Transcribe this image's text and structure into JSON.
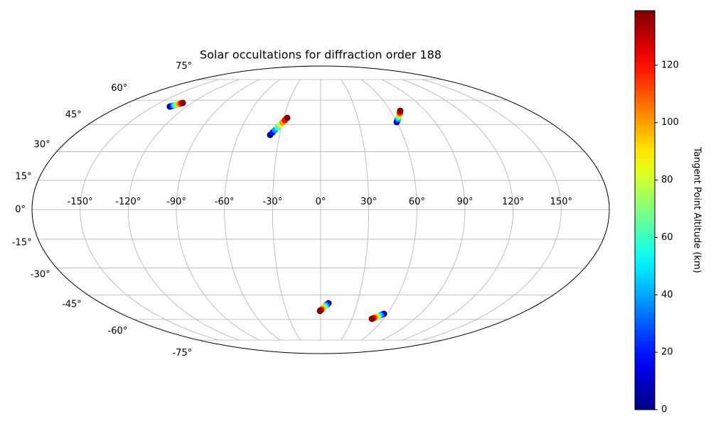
{
  "chart_data": {
    "type": "scatter",
    "projection": "mollweide",
    "title": "Solar occultations for diffraction order 188",
    "colorbar_label": "Tangent Point Altitude (km)",
    "colormap": "jet",
    "grid": true,
    "xlim": [
      -180,
      180
    ],
    "ylim": [
      -90,
      90
    ],
    "xticks": [
      {
        "value": -150,
        "label": "-150°"
      },
      {
        "value": -120,
        "label": "-120°"
      },
      {
        "value": -90,
        "label": "-90°"
      },
      {
        "value": -60,
        "label": "-60°"
      },
      {
        "value": -30,
        "label": "-30°"
      },
      {
        "value": 0,
        "label": "0°"
      },
      {
        "value": 30,
        "label": "30°"
      },
      {
        "value": 60,
        "label": "60°"
      },
      {
        "value": 90,
        "label": "90°"
      },
      {
        "value": 120,
        "label": "120°"
      },
      {
        "value": 150,
        "label": "150°"
      }
    ],
    "yticks": [
      {
        "value": -75,
        "label": "-75°"
      },
      {
        "value": -60,
        "label": "-60°"
      },
      {
        "value": -45,
        "label": "-45°"
      },
      {
        "value": -30,
        "label": "-30°"
      },
      {
        "value": -15,
        "label": "-15°"
      },
      {
        "value": 0,
        "label": "0°"
      },
      {
        "value": 15,
        "label": "15°"
      },
      {
        "value": 30,
        "label": "30°"
      },
      {
        "value": 45,
        "label": "45°"
      },
      {
        "value": 60,
        "label": "60°"
      },
      {
        "value": 75,
        "label": "75°"
      }
    ],
    "clim": [
      0,
      139
    ],
    "cticks": [
      0,
      20,
      40,
      60,
      80,
      100,
      120
    ],
    "lon": [
      -135.1,
      -134.2,
      -133.2,
      -132.3,
      -131.3,
      -130.4,
      -129.4,
      -128.5,
      -36.9,
      -35.5,
      -34.1,
      -32.7,
      -31.3,
      -29.9,
      -28.5,
      -27.1,
      59.9,
      61.1,
      62.4,
      63.6,
      64.8,
      66.0,
      67.3,
      68.5,
      6.4,
      5.4,
      4.4,
      3.4,
      2.4,
      1.4,
      0.4,
      -0.6,
      57.1,
      55.9,
      54.8,
      53.6,
      52.5,
      51.3,
      50.2,
      49.0
    ],
    "lat": [
      55.9,
      56.2,
      56.6,
      56.9,
      57.2,
      57.5,
      57.9,
      58.2,
      39.2,
      40.6,
      42.0,
      43.4,
      44.8,
      46.2,
      47.6,
      49.0,
      46.5,
      47.5,
      48.4,
      49.4,
      50.4,
      51.4,
      52.3,
      53.3,
      -49.9,
      -50.6,
      -51.2,
      -51.9,
      -52.6,
      -53.3,
      -53.9,
      -54.6,
      -56.4,
      -56.9,
      -57.3,
      -57.8,
      -58.2,
      -58.7,
      -59.1,
      -59.6
    ],
    "altitude": [
      0,
      20,
      40,
      60,
      80,
      100,
      120,
      139,
      0,
      20,
      40,
      60,
      80,
      100,
      120,
      139,
      0,
      20,
      40,
      60,
      80,
      100,
      120,
      139,
      0,
      20,
      40,
      60,
      80,
      100,
      120,
      139,
      0,
      20,
      40,
      60,
      80,
      100,
      120,
      139
    ]
  }
}
